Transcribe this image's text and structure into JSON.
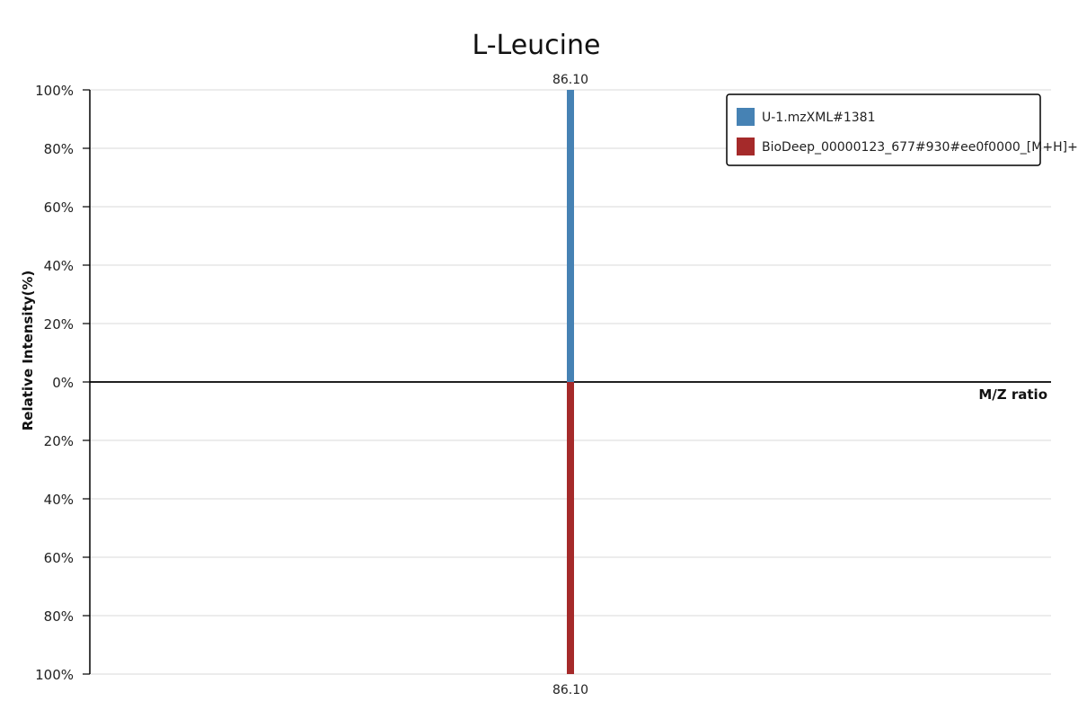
{
  "chart_data": {
    "type": "bar",
    "title": "L-Leucine",
    "xlabel": "M/Z ratio",
    "ylabel": "Relative Intensity(%)",
    "y_ticks_top": [
      "100%",
      "80%",
      "60%",
      "40%",
      "20%",
      "0%"
    ],
    "y_ticks_bottom": [
      "20%",
      "40%",
      "60%",
      "80%",
      "100%"
    ],
    "ylim": [
      -100,
      100
    ],
    "grid": true,
    "legend_position": "top-right",
    "series": [
      {
        "name": "U-1.mzXML#1381",
        "color": "#4682b4",
        "direction": "up",
        "peaks": [
          {
            "mz": 86.1,
            "intensity": 100,
            "label": "86.10"
          }
        ]
      },
      {
        "name": "BioDeep_00000123_677#930#ee0f0000_[M+H]+",
        "color": "#a52a2a",
        "direction": "down",
        "peaks": [
          {
            "mz": 86.1,
            "intensity": 100,
            "label": "86.10"
          }
        ]
      }
    ]
  }
}
